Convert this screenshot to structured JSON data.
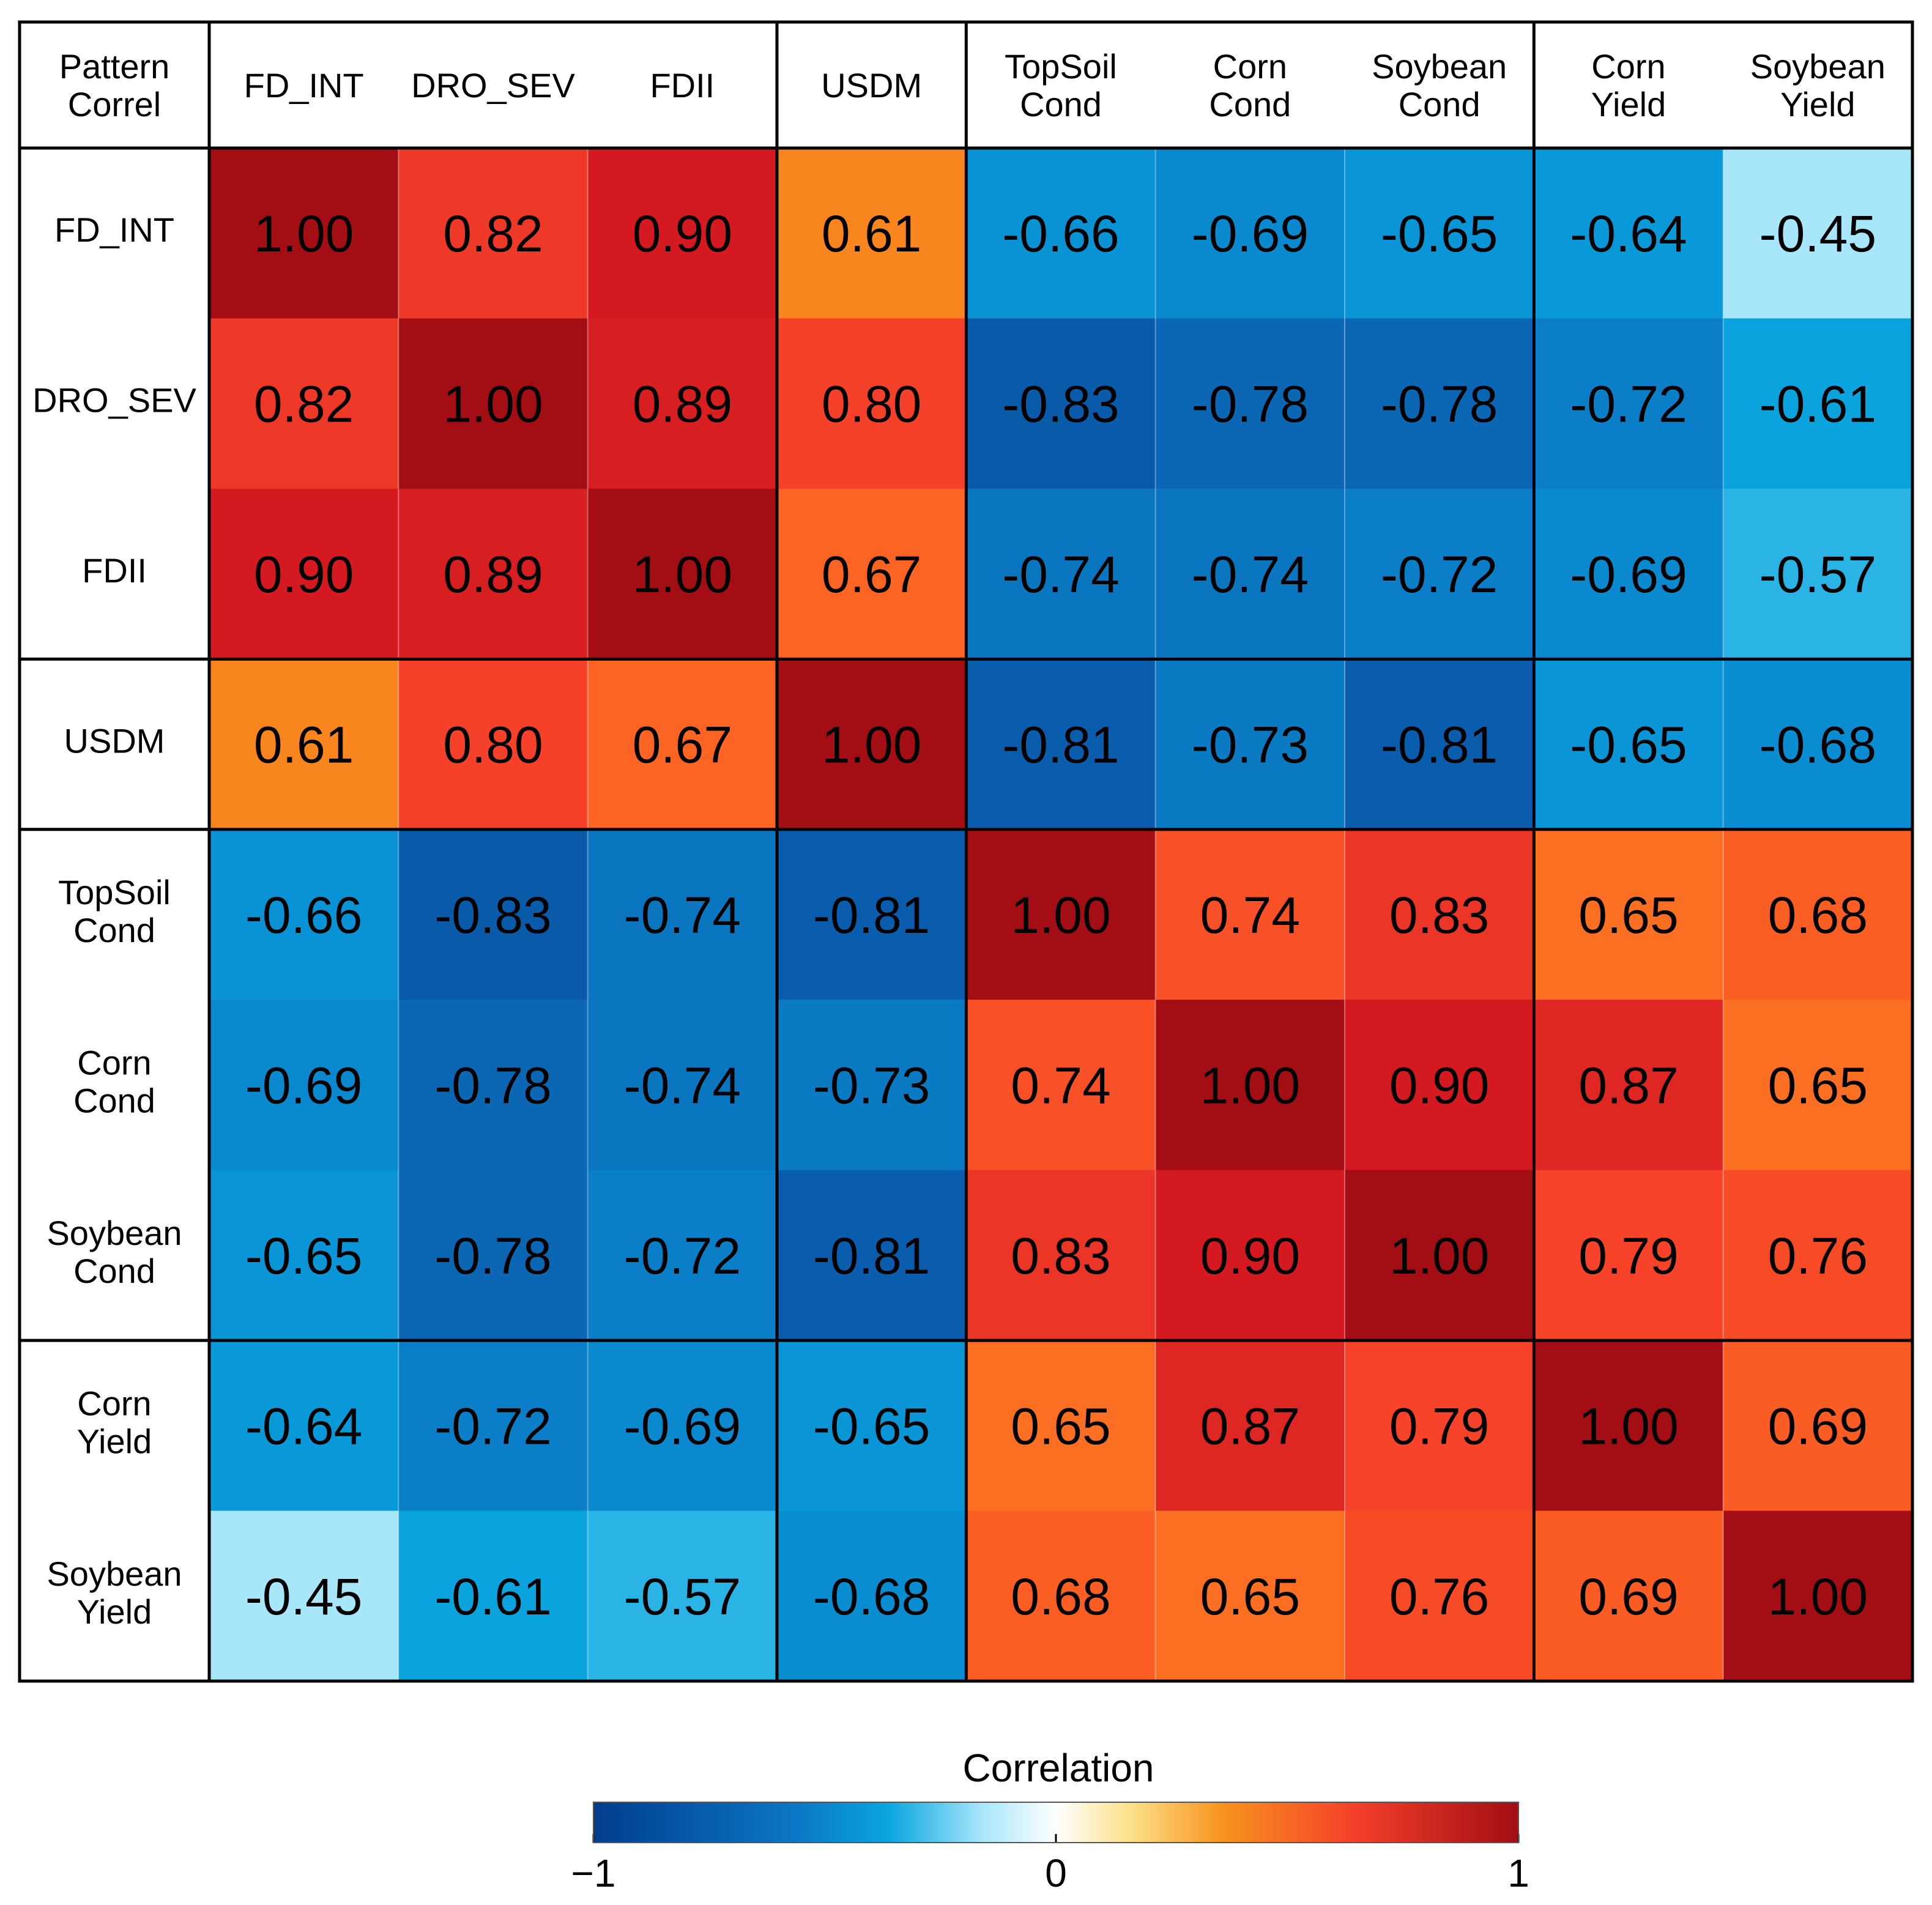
{
  "chart_data": {
    "type": "heatmap",
    "title": "",
    "corner_label": [
      "Pattern",
      "Correl"
    ],
    "columns": [
      [
        "FD_INT"
      ],
      [
        "DRO_SEV"
      ],
      [
        "FDII"
      ],
      [
        "USDM"
      ],
      [
        "TopSoil",
        "Cond"
      ],
      [
        "Corn",
        "Cond"
      ],
      [
        "Soybean",
        "Cond"
      ],
      [
        "Corn",
        "Yield"
      ],
      [
        "Soybean",
        "Yield"
      ]
    ],
    "rows": [
      [
        "FD_INT"
      ],
      [
        "DRO_SEV"
      ],
      [
        "FDII"
      ],
      [
        "USDM"
      ],
      [
        "TopSoil",
        "Cond"
      ],
      [
        "Corn",
        "Cond"
      ],
      [
        "Soybean",
        "Cond"
      ],
      [
        "Corn",
        "Yield"
      ],
      [
        "Soybean",
        "Yield"
      ]
    ],
    "groups": [
      [
        0,
        2
      ],
      [
        3,
        3
      ],
      [
        4,
        6
      ],
      [
        7,
        8
      ]
    ],
    "values": [
      [
        1.0,
        0.82,
        0.9,
        0.61,
        -0.66,
        -0.69,
        -0.65,
        -0.64,
        -0.45
      ],
      [
        0.82,
        1.0,
        0.89,
        0.8,
        -0.83,
        -0.78,
        -0.78,
        -0.72,
        -0.61
      ],
      [
        0.9,
        0.89,
        1.0,
        0.67,
        -0.74,
        -0.74,
        -0.72,
        -0.69,
        -0.57
      ],
      [
        0.61,
        0.8,
        0.67,
        1.0,
        -0.81,
        -0.73,
        -0.81,
        -0.65,
        -0.68
      ],
      [
        -0.66,
        -0.83,
        -0.74,
        -0.81,
        1.0,
        0.74,
        0.83,
        0.65,
        0.68
      ],
      [
        -0.69,
        -0.78,
        -0.74,
        -0.73,
        0.74,
        1.0,
        0.9,
        0.87,
        0.65
      ],
      [
        -0.65,
        -0.78,
        -0.72,
        -0.81,
        0.83,
        0.9,
        1.0,
        0.79,
        0.76
      ],
      [
        -0.64,
        -0.72,
        -0.69,
        -0.65,
        0.65,
        0.87,
        0.79,
        1.0,
        0.69
      ],
      [
        -0.45,
        -0.61,
        -0.57,
        -0.68,
        0.68,
        0.65,
        0.76,
        0.69,
        1.0
      ]
    ],
    "value_format": "2 decimals",
    "colorbar": {
      "title": "Correlation",
      "range": [
        -1,
        1
      ],
      "tick_labels": [
        "−1",
        "0",
        "1"
      ],
      "tick_values": [
        -1,
        0,
        1
      ]
    },
    "colors": {
      "neg_strong": "#003d8c",
      "neg_mid": "#0099d8",
      "neg_light": "#a8e6fa",
      "zero": "#ffffff",
      "pos_light": "#fde18a",
      "pos_mid": "#f7931e",
      "pos_warm": "#f5412a",
      "pos_strong": "#a30d14"
    }
  }
}
